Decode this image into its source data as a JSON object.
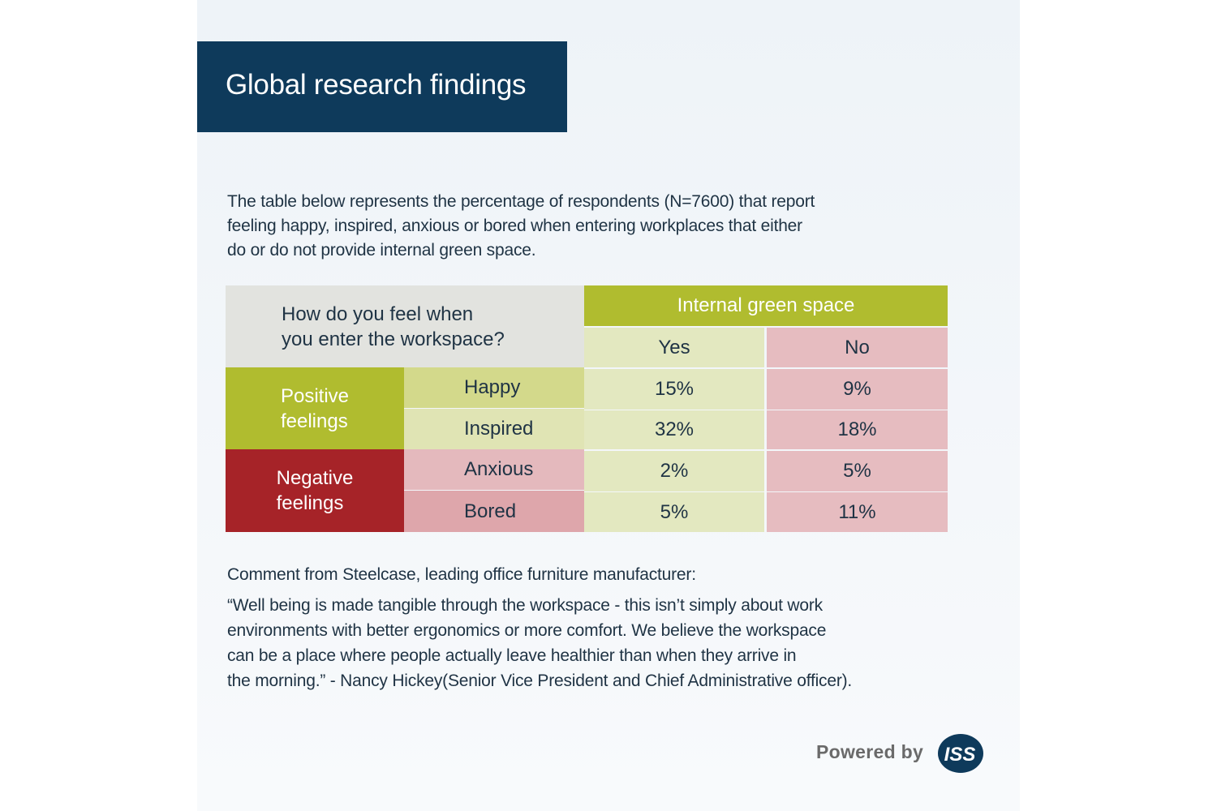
{
  "header": {
    "title": "Global research findings"
  },
  "intro": {
    "lines": [
      "The table below represents the percentage of respondents (N=7600) that report",
      "feeling happy, inspired, anxious or bored when entering workplaces that either",
      "do or do not provide internal green space."
    ]
  },
  "table": {
    "question_lines": [
      "How do you feel when",
      "you enter the workspace?"
    ],
    "column_group": "Internal green space",
    "columns": [
      "Yes",
      "No"
    ],
    "groups": [
      {
        "label_lines": [
          "Positive",
          "feelings"
        ],
        "rows": [
          {
            "feeling": "Happy",
            "yes": "15%",
            "no": "9%"
          },
          {
            "feeling": "Inspired",
            "yes": "32%",
            "no": "18%"
          }
        ]
      },
      {
        "label_lines": [
          "Negative",
          "feelings"
        ],
        "rows": [
          {
            "feeling": "Anxious",
            "yes": "2%",
            "no": "5%"
          },
          {
            "feeling": "Bored",
            "yes": "5%",
            "no": "11%"
          }
        ]
      }
    ]
  },
  "comment": {
    "heading": "Comment from Steelcase, leading office furniture manufacturer:",
    "quote_lines": [
      "“Well being is made tangible through the workspace - this isn’t simply about work",
      "environments with better ergonomics or more comfort. We believe the workspace",
      "can be a place where people actually leave healthier than when they arrive in",
      "the morning.” - Nancy Hickey(Senior Vice President and Chief Administrative officer)."
    ]
  },
  "footer": {
    "powered_by": "Powered by",
    "logo_text": "ISS",
    "logo_icon": "iss-logo-icon"
  },
  "colors": {
    "navy": "#0e3a5b",
    "green": "#b0bc2f",
    "red": "#a62328",
    "light_green": "#e3e8c0",
    "light_pink": "#e6bcc0"
  }
}
